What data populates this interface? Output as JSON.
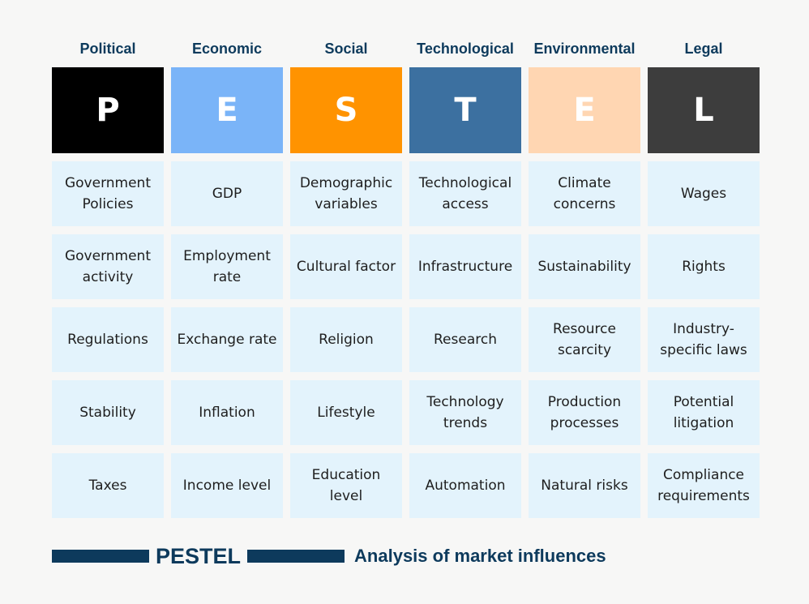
{
  "columns": [
    {
      "title": "Political",
      "letter": "P",
      "color": "#000000",
      "items": [
        "Government\nPolicies",
        "Government\nactivity",
        "Regulations",
        "Stability",
        "Taxes"
      ]
    },
    {
      "title": "Economic",
      "letter": "E",
      "color": "#7ab4f8",
      "items": [
        "GDP",
        "Employment\nrate",
        "Exchange rate",
        "Inflation",
        "Income level"
      ]
    },
    {
      "title": "Social",
      "letter": "S",
      "color": "#ff9300",
      "items": [
        "Demographic\nvariables",
        "Cultural factor",
        "Religion",
        "Lifestyle",
        "Education\nlevel"
      ]
    },
    {
      "title": "Technological",
      "letter": "T",
      "color": "#3c70a0",
      "items": [
        "Technological\naccess",
        "Infrastructure",
        "Research",
        "Technology\ntrends",
        "Automation"
      ]
    },
    {
      "title": "Environmental",
      "letter": "E",
      "color": "#ffd6b2",
      "items": [
        "Climate\nconcerns",
        "Sustainability",
        "Resource\nscarcity",
        "Production\nprocesses",
        "Natural risks"
      ]
    },
    {
      "title": "Legal",
      "letter": "L",
      "color": "#3d3d3d",
      "items": [
        "Wages",
        "Rights",
        "Industry-\nspecific laws",
        "Potential\nlitigation",
        "Compliance\nrequirements"
      ]
    }
  ],
  "footer": {
    "title": "PESTEL",
    "subtitle": "Analysis of market influences",
    "color": "#0d3a5c"
  },
  "colors": {
    "cell_background": "#e3f3fc",
    "page_background": "#f7f7f6"
  }
}
